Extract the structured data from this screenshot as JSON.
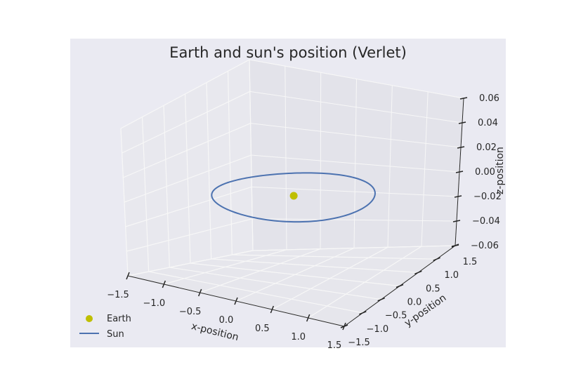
{
  "chart_data": {
    "type": "line",
    "projection": "3d",
    "title": "Earth and sun's position (Verlet)",
    "xlabel": "x-position",
    "ylabel": "y-position",
    "zlabel": "z-position",
    "xlim": [
      -1.5,
      1.5
    ],
    "ylim": [
      -1.5,
      1.5
    ],
    "zlim": [
      -0.06,
      0.06
    ],
    "x_ticks": [
      "−1.5",
      "−1.0",
      "−0.5",
      "0.0",
      "0.5",
      "1.0",
      "1.5"
    ],
    "y_ticks": [
      "−1.5",
      "−1.0",
      "−0.5",
      "0.0",
      "0.5",
      "1.0",
      "1.5"
    ],
    "z_ticks": [
      "−0.06",
      "−0.04",
      "−0.02",
      "0.00",
      "0.02",
      "0.04",
      "0.06"
    ],
    "grid": true,
    "legend_position": "lower-left",
    "series": [
      {
        "name": "Earth",
        "kind": "marker",
        "color": "#bfbf00",
        "x": [
          0.0
        ],
        "y": [
          0.0
        ],
        "z": [
          0.0
        ]
      },
      {
        "name": "Sun",
        "kind": "line",
        "color": "#4c72b0",
        "orbit": {
          "shape": "circle",
          "radius": 1.0,
          "center": [
            0.0,
            0.0,
            0.0
          ],
          "z": 0.0
        }
      }
    ],
    "colors": {
      "axes_background": "#eaeaf2",
      "pane": "#e6e6ec",
      "grid": "#ffffff"
    }
  }
}
